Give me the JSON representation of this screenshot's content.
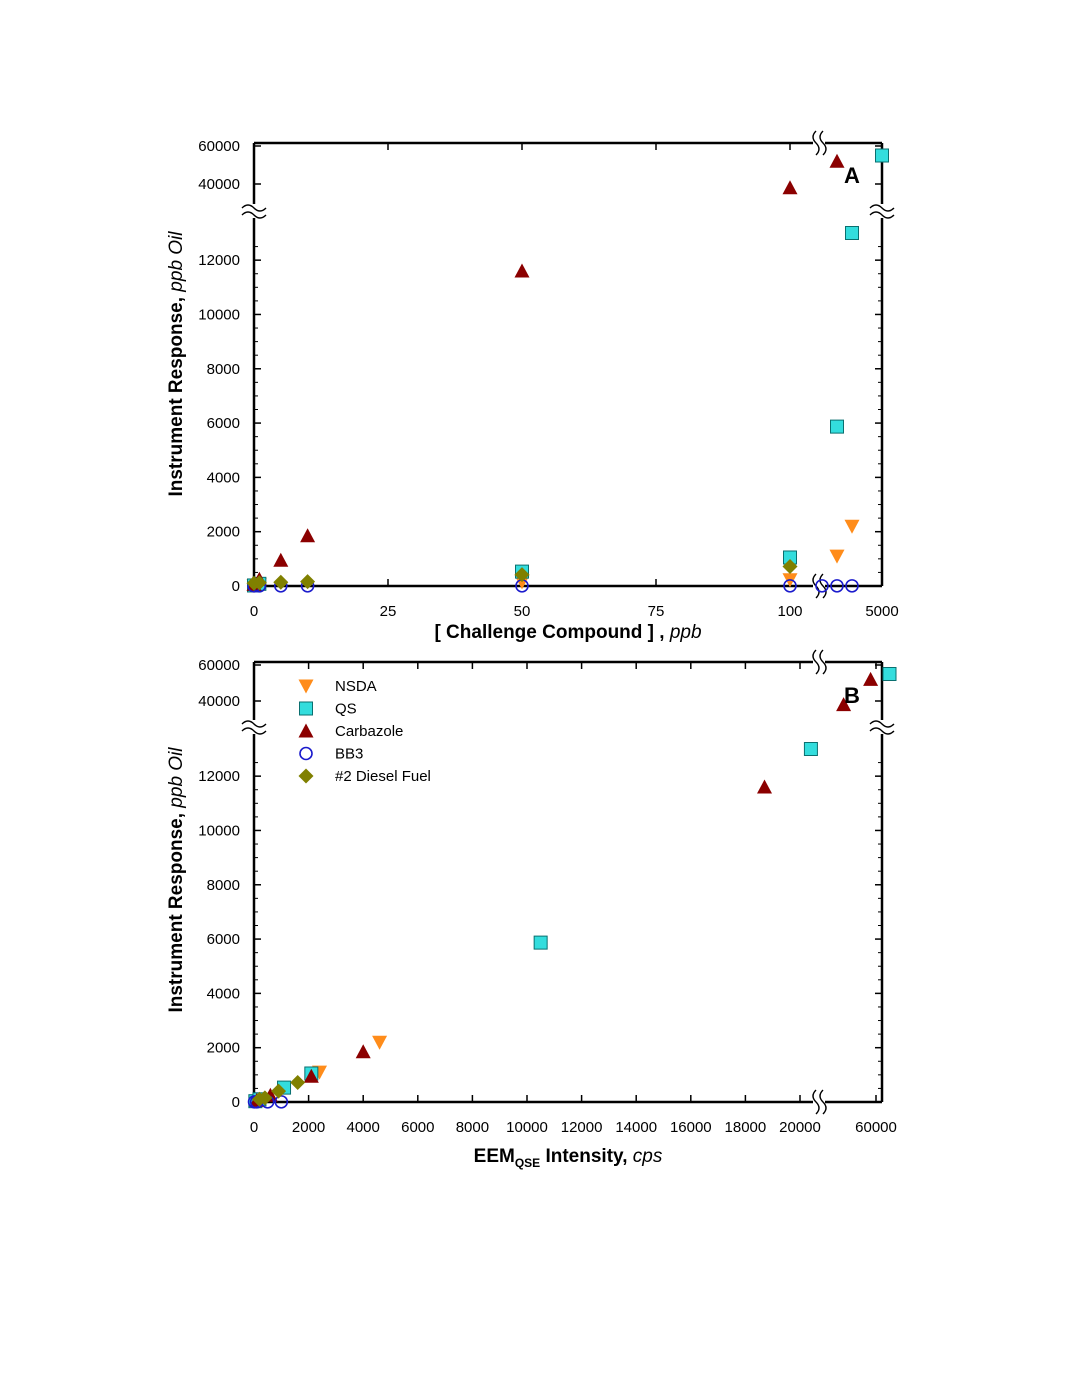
{
  "chart_data": [
    {
      "type": "scatter",
      "panel": "A",
      "ylabel": "Instrument Response",
      "ylabel_unit": "ppb Oil",
      "xlabel": "[ Challenge Compound ]",
      "xlabel_unit": "ppb",
      "x_ticks": [
        "0",
        "25",
        "50",
        "75",
        "100",
        "5000"
      ],
      "y_ticks": [
        "0",
        "2000",
        "4000",
        "6000",
        "8000",
        "10000",
        "12000",
        "40000",
        "60000"
      ],
      "y_axis_break": [
        13500,
        35000
      ],
      "x_axis_break": [
        110,
        1000
      ],
      "grid": false,
      "series": [
        {
          "name": "NSDA",
          "marker": "triangle-down",
          "color": "#ff8c1a",
          "points": [
            [
              0,
              20
            ],
            [
              1,
              60
            ],
            [
              50,
              150
            ],
            [
              100,
              230
            ],
            [
              2000,
              1100
            ],
            [
              3000,
              2200
            ]
          ]
        },
        {
          "name": "QS",
          "marker": "square",
          "color": "#33dddd",
          "points": [
            [
              0,
              20
            ],
            [
              1,
              80
            ],
            [
              50,
              530
            ],
            [
              100,
              1050
            ],
            [
              2000,
              5870
            ],
            [
              3000,
              13000
            ],
            [
              5000,
              55000
            ]
          ]
        },
        {
          "name": "Carbazole",
          "marker": "triangle-up",
          "color": "#8b0000",
          "points": [
            [
              0,
              60
            ],
            [
              1,
              250
            ],
            [
              5,
              950
            ],
            [
              10,
              1850
            ],
            [
              50,
              11600
            ],
            [
              100,
              38000
            ],
            [
              2000,
              52000
            ]
          ]
        },
        {
          "name": "BB3",
          "marker": "circle-open",
          "color": "#1a1acc",
          "points": [
            [
              0,
              5
            ],
            [
              1,
              5
            ],
            [
              5,
              5
            ],
            [
              10,
              5
            ],
            [
              50,
              5
            ],
            [
              100,
              5
            ],
            [
              1000,
              5
            ],
            [
              2000,
              5
            ],
            [
              3000,
              5
            ]
          ]
        },
        {
          "name": "#2 Diesel Fuel",
          "marker": "diamond",
          "color": "#808000",
          "points": [
            [
              0,
              100
            ],
            [
              1,
              120
            ],
            [
              5,
              140
            ],
            [
              10,
              160
            ],
            [
              50,
              420
            ],
            [
              100,
              720
            ]
          ]
        }
      ]
    },
    {
      "type": "scatter",
      "panel": "B",
      "ylabel": "Instrument Response",
      "ylabel_unit": "ppb Oil",
      "xlabel": "EEM",
      "xlabel_sub": "QSE",
      "xlabel_rest": " Intensity",
      "xlabel_unit": "cps",
      "x_ticks": [
        "0",
        "2000",
        "4000",
        "6000",
        "8000",
        "10000",
        "12000",
        "14000",
        "16000",
        "18000",
        "20000",
        "60000"
      ],
      "y_ticks": [
        "0",
        "2000",
        "4000",
        "6000",
        "8000",
        "10000",
        "12000",
        "40000",
        "60000"
      ],
      "y_axis_break": [
        13500,
        35000
      ],
      "x_axis_break": [
        20500,
        40000
      ],
      "legend_position": "top-left",
      "grid": false,
      "series": [
        {
          "name": "NSDA",
          "marker": "triangle-down",
          "color": "#ff8c1a",
          "points": [
            [
              100,
              30
            ],
            [
              300,
              100
            ],
            [
              2400,
              1100
            ],
            [
              4600,
              2200
            ]
          ]
        },
        {
          "name": "QS",
          "marker": "square",
          "color": "#33dddd",
          "points": [
            [
              50,
              30
            ],
            [
              200,
              100
            ],
            [
              1100,
              530
            ],
            [
              2100,
              1050
            ],
            [
              10500,
              5870
            ],
            [
              20400,
              13000
            ],
            [
              65000,
              55000
            ]
          ]
        },
        {
          "name": "Carbazole",
          "marker": "triangle-up",
          "color": "#8b0000",
          "points": [
            [
              100,
              60
            ],
            [
              600,
              250
            ],
            [
              2100,
              950
            ],
            [
              4000,
              1850
            ],
            [
              18700,
              11600
            ],
            [
              48000,
              38000
            ],
            [
              58000,
              52000
            ]
          ]
        },
        {
          "name": "BB3",
          "marker": "circle-open",
          "color": "#1a1acc",
          "points": [
            [
              20,
              5
            ],
            [
              100,
              5
            ],
            [
              500,
              5
            ],
            [
              1000,
              5
            ]
          ]
        },
        {
          "name": "#2 Diesel Fuel",
          "marker": "diamond",
          "color": "#808000",
          "points": [
            [
              200,
              100
            ],
            [
              400,
              150
            ],
            [
              900,
              400
            ],
            [
              1600,
              720
            ]
          ]
        }
      ]
    }
  ]
}
